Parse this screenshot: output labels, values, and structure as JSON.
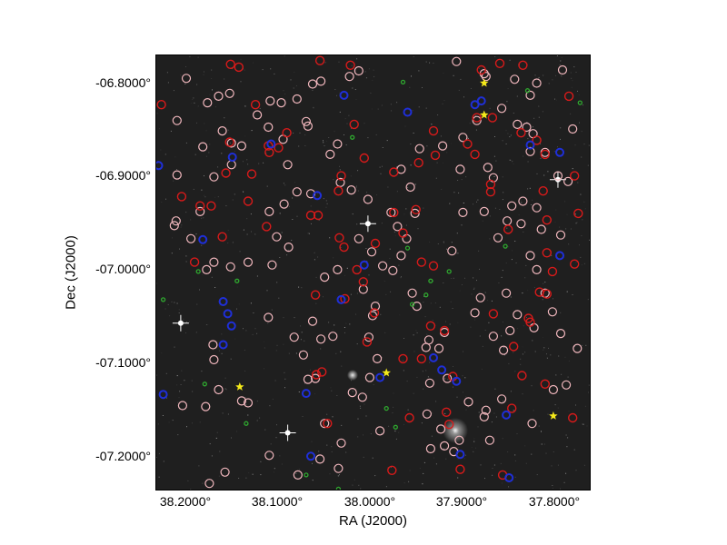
{
  "axes": {
    "xlabel": "RA (J2000)",
    "ylabel": "Dec (J2000)",
    "x_ticks": [
      "38.2000°",
      "38.1000°",
      "38.0000°",
      "37.9000°",
      "37.8000°"
    ],
    "y_ticks": [
      "-06.8000°",
      "-06.9000°",
      "-07.0000°",
      "-07.1000°",
      "-07.2000°"
    ]
  },
  "colors": {
    "background": "#1f1f1f",
    "pink_circle": "#f2b8be",
    "red_circle": "#d81a1a",
    "blue_marker": "#1f2fd8",
    "green_marker": "#2fa82f",
    "yellow_star": "#f5ea1a"
  },
  "markers": {
    "pink_circles": [
      [
        38.195,
        -6.794
      ],
      [
        38.16,
        -6.813
      ],
      [
        38.148,
        -6.81
      ],
      [
        38.104,
        -6.818
      ],
      [
        38.075,
        -6.816
      ],
      [
        38.058,
        -6.8
      ],
      [
        38.049,
        -6.797
      ],
      [
        38.018,
        -6.792
      ],
      [
        38.008,
        -6.786
      ],
      [
        37.902,
        -6.776
      ],
      [
        37.872,
        -6.789
      ],
      [
        37.836,
        -6.843
      ],
      [
        37.819,
        -6.853
      ],
      [
        37.826,
        -6.846
      ],
      [
        37.822,
        -6.872
      ],
      [
        37.806,
        -6.873
      ],
      [
        37.792,
        -6.898
      ],
      [
        37.781,
        -6.904
      ],
      [
        37.776,
        -6.848
      ],
      [
        37.815,
        -6.932
      ],
      [
        37.832,
        -6.949
      ],
      [
        37.847,
        -6.946
      ],
      [
        37.83,
        -6.925
      ],
      [
        37.842,
        -6.93
      ],
      [
        37.815,
        -6.998
      ],
      [
        37.806,
        -7.023
      ],
      [
        37.798,
        -7.043
      ],
      [
        37.789,
        -7.066
      ],
      [
        37.771,
        -7.082
      ],
      [
        37.783,
        -7.121
      ],
      [
        37.797,
        -7.126
      ],
      [
        37.836,
        -7.046
      ],
      [
        37.844,
        -7.063
      ],
      [
        37.851,
        -7.084
      ],
      [
        37.862,
        -7.069
      ],
      [
        37.882,
        -7.044
      ],
      [
        37.876,
        -7.028
      ],
      [
        37.848,
        -7.023
      ],
      [
        37.857,
        -6.964
      ],
      [
        37.872,
        -6.936
      ],
      [
        37.895,
        -6.937
      ],
      [
        37.907,
        -6.978
      ],
      [
        37.898,
        -6.891
      ],
      [
        37.895,
        -6.857
      ],
      [
        37.868,
        -6.889
      ],
      [
        37.88,
        -6.839
      ],
      [
        37.917,
        -6.866
      ],
      [
        37.942,
        -6.869
      ],
      [
        37.962,
        -6.891
      ],
      [
        37.952,
        -6.91
      ],
      [
        37.973,
        -6.937
      ],
      [
        37.966,
        -6.952
      ],
      [
        37.947,
        -6.938
      ],
      [
        37.956,
        -6.965
      ],
      [
        37.962,
        -6.983
      ],
      [
        37.971,
        -6.999
      ],
      [
        37.982,
        -6.994
      ],
      [
        37.994,
        -6.979
      ],
      [
        38.008,
        -6.965
      ],
      [
        37.998,
        -6.923
      ],
      [
        38.016,
        -6.913
      ],
      [
        38.028,
        -6.905
      ],
      [
        38.031,
        -6.864
      ],
      [
        38.039,
        -6.875
      ],
      [
        38.065,
        -6.84
      ],
      [
        38.09,
        -6.859
      ],
      [
        38.085,
        -6.886
      ],
      [
        38.075,
        -6.915
      ],
      [
        38.06,
        -6.917
      ],
      [
        38.089,
        -6.928
      ],
      [
        38.105,
        -6.936
      ],
      [
        38.097,
        -6.963
      ],
      [
        38.084,
        -6.974
      ],
      [
        38.102,
        -6.993
      ],
      [
        38.128,
        -6.99
      ],
      [
        38.147,
        -6.995
      ],
      [
        38.173,
        -6.998
      ],
      [
        38.19,
        -6.965
      ],
      [
        38.208,
        -6.951
      ],
      [
        38.18,
        -6.936
      ],
      [
        38.165,
        -6.899
      ],
      [
        38.146,
        -6.886
      ],
      [
        38.177,
        -6.867
      ],
      [
        38.146,
        -6.863
      ],
      [
        38.135,
        -6.866
      ],
      [
        38.106,
        -6.846
      ],
      [
        38.118,
        -6.833
      ],
      [
        38.092,
        -6.82
      ],
      [
        38.063,
        -6.845
      ],
      [
        38.205,
        -6.839
      ],
      [
        38.172,
        -6.82
      ],
      [
        38.156,
        -6.85
      ],
      [
        38.205,
        -6.897
      ],
      [
        38.206,
        -6.946
      ],
      [
        38.165,
        -6.99
      ],
      [
        38.199,
        -7.143
      ],
      [
        38.174,
        -7.144
      ],
      [
        38.16,
        -7.126
      ],
      [
        38.135,
        -7.138
      ],
      [
        38.128,
        -7.14
      ],
      [
        38.166,
        -7.078
      ],
      [
        38.165,
        -7.094
      ],
      [
        38.106,
        -7.049
      ],
      [
        38.078,
        -7.07
      ],
      [
        38.068,
        -7.089
      ],
      [
        38.058,
        -7.053
      ],
      [
        38.049,
        -7.072
      ],
      [
        38.036,
        -7.069
      ],
      [
        38.055,
        -7.114
      ],
      [
        38.063,
        -7.115
      ],
      [
        38.045,
        -7.162
      ],
      [
        38.027,
        -7.183
      ],
      [
        38.015,
        -7.129
      ],
      [
        38.004,
        -7.134
      ],
      [
        37.996,
        -7.113
      ],
      [
        37.988,
        -7.093
      ],
      [
        37.997,
        -7.07
      ],
      [
        37.993,
        -7.047
      ],
      [
        38.003,
        -7.019
      ],
      [
        37.99,
        -7.037
      ],
      [
        37.95,
        -7.023
      ],
      [
        37.945,
        -7.037
      ],
      [
        37.932,
        -7.073
      ],
      [
        37.935,
        -7.081
      ],
      [
        37.915,
        -7.065
      ],
      [
        37.921,
        -7.082
      ],
      [
        37.931,
        -7.119
      ],
      [
        37.912,
        -7.114
      ],
      [
        37.889,
        -7.139
      ],
      [
        37.853,
        -7.136
      ],
      [
        37.919,
        -7.168
      ],
      [
        37.915,
        -7.186
      ],
      [
        37.899,
        -7.18
      ],
      [
        37.934,
        -7.152
      ],
      [
        37.93,
        -7.189
      ],
      [
        37.866,
        -7.18
      ],
      [
        37.87,
        -7.148
      ],
      [
        37.872,
        -7.155
      ],
      [
        37.82,
        -7.162
      ],
      [
        37.818,
        -7.06
      ],
      [
        37.905,
        -7.192
      ],
      [
        38.03,
        -7.21
      ],
      [
        37.985,
        -7.17
      ],
      [
        38.05,
        -7.2
      ],
      [
        38.153,
        -7.214
      ],
      [
        38.17,
        -7.226
      ],
      [
        38.105,
        -7.196
      ],
      [
        38.074,
        -7.217
      ],
      [
        37.853,
        -6.826
      ],
      [
        37.822,
        -6.812
      ],
      [
        37.815,
        -6.799
      ],
      [
        37.787,
        -6.785
      ],
      [
        37.839,
        -6.795
      ],
      [
        37.87,
        -6.792
      ],
      [
        37.862,
        -6.9
      ],
      [
        37.81,
        -6.955
      ],
      [
        37.822,
        -6.983
      ],
      [
        37.789,
        -6.961
      ],
      [
        38.031,
        -6.998
      ],
      [
        38.045,
        -7.006
      ]
    ],
    "red_circles": [
      [
        38.222,
        -6.822
      ],
      [
        38.138,
        -6.782
      ],
      [
        38.12,
        -6.822
      ],
      [
        38.106,
        -6.866
      ],
      [
        38.148,
        -6.862
      ],
      [
        38.152,
        -6.895
      ],
      [
        38.168,
        -6.93
      ],
      [
        38.156,
        -6.963
      ],
      [
        38.108,
        -6.952
      ],
      [
        38.186,
        -6.99
      ],
      [
        38.052,
        -6.94
      ],
      [
        38.029,
        -6.964
      ],
      [
        38.024,
        -6.974
      ],
      [
        38.027,
        -6.898
      ],
      [
        38.03,
        -6.914
      ],
      [
        37.96,
        -6.959
      ],
      [
        37.946,
        -6.934
      ],
      [
        37.97,
        -6.894
      ],
      [
        37.943,
        -6.884
      ],
      [
        37.925,
        -6.876
      ],
      [
        37.927,
        -6.85
      ],
      [
        37.89,
        -6.864
      ],
      [
        37.882,
        -6.875
      ],
      [
        37.863,
        -6.836
      ],
      [
        37.832,
        -6.852
      ],
      [
        37.815,
        -6.86
      ],
      [
        37.806,
        -6.875
      ],
      [
        37.808,
        -6.914
      ],
      [
        37.804,
        -6.945
      ],
      [
        37.77,
        -6.938
      ],
      [
        37.804,
        -6.98
      ],
      [
        37.798,
        -7.0
      ],
      [
        37.774,
        -6.992
      ],
      [
        37.804,
        -7.024
      ],
      [
        37.824,
        -7.05
      ],
      [
        37.822,
        -7.054
      ],
      [
        37.812,
        -7.022
      ],
      [
        37.831,
        -7.111
      ],
      [
        37.806,
        -7.12
      ],
      [
        37.776,
        -7.156
      ],
      [
        37.842,
        -7.146
      ],
      [
        37.852,
        -7.217
      ],
      [
        37.872,
        -7.238
      ],
      [
        37.898,
        -7.211
      ],
      [
        37.91,
        -7.163
      ],
      [
        37.913,
        -7.15
      ],
      [
        37.953,
        -7.156
      ],
      [
        37.972,
        -7.212
      ],
      [
        37.96,
        -7.093
      ],
      [
        37.94,
        -7.093
      ],
      [
        37.906,
        -7.112
      ],
      [
        37.915,
        -7.063
      ],
      [
        37.93,
        -7.058
      ],
      [
        37.927,
        -6.994
      ],
      [
        37.94,
        -6.99
      ],
      [
        37.97,
        -6.937
      ],
      [
        37.99,
        -6.97
      ],
      [
        38.003,
        -7.011
      ],
      [
        37.991,
        -7.044
      ],
      [
        37.999,
        -7.075
      ],
      [
        38.054,
        -7.11
      ],
      [
        38.055,
        -7.025
      ],
      [
        38.01,
        -6.998
      ],
      [
        38.023,
        -7.029
      ],
      [
        38.042,
        -7.162
      ],
      [
        38.048,
        -7.107
      ],
      [
        38.124,
        -6.896
      ],
      [
        38.147,
        -6.779
      ],
      [
        38.05,
        -6.775
      ],
      [
        38.017,
        -6.78
      ],
      [
        37.855,
        -6.778
      ],
      [
        37.83,
        -6.78
      ],
      [
        37.78,
        -6.813
      ],
      [
        37.875,
        -6.785
      ],
      [
        37.88,
        -6.836
      ],
      [
        38.06,
        -6.94
      ],
      [
        38.128,
        -6.925
      ],
      [
        38.2,
        -6.92
      ],
      [
        38.18,
        -6.93
      ],
      [
        38.105,
        -6.873
      ],
      [
        38.095,
        -6.868
      ],
      [
        38.086,
        -6.852
      ],
      [
        38.013,
        -6.843
      ],
      [
        38.002,
        -6.879
      ],
      [
        37.865,
        -6.907
      ],
      [
        37.865,
        -6.915
      ],
      [
        37.846,
        -6.955
      ],
      [
        37.774,
        -6.898
      ],
      [
        37.862,
        -7.045
      ],
      [
        37.84,
        -7.08
      ]
    ],
    "blue_markers": [
      [
        38.225,
        -6.887
      ],
      [
        38.177,
        -6.966
      ],
      [
        38.155,
        -7.032
      ],
      [
        38.15,
        -7.045
      ],
      [
        38.146,
        -7.058
      ],
      [
        38.155,
        -7.078
      ],
      [
        38.145,
        -6.878
      ],
      [
        38.103,
        -6.864
      ],
      [
        38.053,
        -6.919
      ],
      [
        38.024,
        -6.812
      ],
      [
        37.955,
        -6.83
      ],
      [
        37.875,
        -6.818
      ],
      [
        37.882,
        -6.822
      ],
      [
        37.822,
        -6.865
      ],
      [
        37.79,
        -6.873
      ],
      [
        37.79,
        -6.983
      ],
      [
        38.002,
        -6.993
      ],
      [
        38.027,
        -7.03
      ],
      [
        37.985,
        -7.113
      ],
      [
        37.927,
        -7.092
      ],
      [
        37.918,
        -7.105
      ],
      [
        37.898,
        -7.195
      ],
      [
        38.065,
        -7.13
      ],
      [
        38.06,
        -7.197
      ],
      [
        38.22,
        -7.131
      ],
      [
        37.848,
        -7.153
      ],
      [
        37.845,
        -7.22
      ],
      [
        37.902,
        -7.117
      ]
    ],
    "green_markers": [
      [
        38.24,
        -6.869
      ],
      [
        38.22,
        -7.03
      ],
      [
        38.182,
        -7.0
      ],
      [
        38.14,
        -7.01
      ],
      [
        38.13,
        -7.162
      ],
      [
        37.978,
        -7.146
      ],
      [
        37.968,
        -7.166
      ],
      [
        38.065,
        -7.217
      ],
      [
        38.03,
        -7.232
      ],
      [
        37.935,
        -7.025
      ],
      [
        37.93,
        -7.01
      ],
      [
        37.955,
        -6.975
      ],
      [
        37.91,
        -7.0
      ],
      [
        37.849,
        -6.973
      ],
      [
        38.015,
        -6.857
      ],
      [
        37.768,
        -6.82
      ],
      [
        37.96,
        -6.798
      ],
      [
        37.825,
        -6.807
      ],
      [
        38.175,
        -7.12
      ],
      [
        37.95,
        -7.035
      ]
    ],
    "yellow_stars": [
      [
        37.872,
        -6.799
      ],
      [
        37.872,
        -6.833
      ],
      [
        38.137,
        -7.123
      ],
      [
        37.978,
        -7.108
      ],
      [
        37.797,
        -7.154
      ]
    ],
    "bright_stars": [
      [
        38.085,
        -7.172
      ],
      [
        38.201,
        -7.055
      ],
      [
        37.792,
        -6.902
      ],
      [
        37.998,
        -6.949
      ]
    ]
  }
}
